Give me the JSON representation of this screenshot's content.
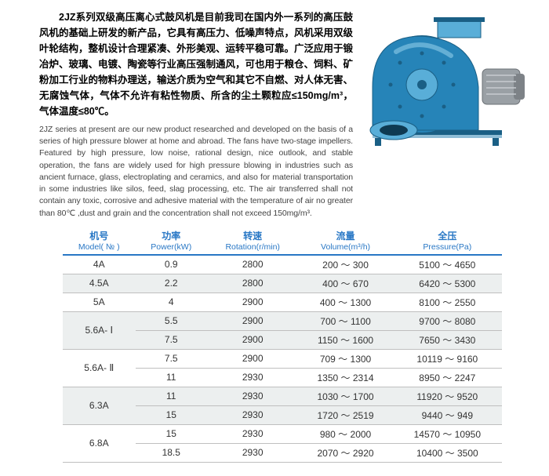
{
  "text": {
    "cn": "2JZ系列双级高压离心式鼓风机是目前我司在国内外一系列的高压鼓风机的基础上研发的新产品，它具有高压力、低噪声特点，风机采用双级叶轮结构，整机设计合理紧凑、外形美观、运转平稳可靠。广泛应用于锻冶炉、玻璃、电镀、陶瓷等行业高压强制通风，可也用于粮仓、饲料、矿粉加工行业的物料办理送，输送介质为空气和其它不自燃、对人体无害、无腐蚀气体，气体不允许有粘性物质、所含的尘土颗粒应≤150mg/m³，气体温度≤80℃。",
    "en": "2JZ series at present are our new product researched and developed on the basis of a series of high pressure blower at home and abroad. The fans have two-stage impellers. Featured by high pressure, low noise, rational design, nice outlook, and stable operation, the fans are widely used for high pressure blowing in industries such as ancient furnace, glass, electroplating and ceramics, and also for material transportation in some industries like silos, feed, slag processing, etc.  The air transferred shall not contain any toxic, corrosive and adhesive material with the temperature of air no greater than 80℃ ,dust and grain and the concentration shall not exceed 150mg/m³."
  },
  "table": {
    "headers": {
      "model_cn": "机号",
      "model_en": "Model( № )",
      "power_cn": "功率",
      "power_en": "Power(kW)",
      "rot_cn": "转速",
      "rot_en": "Rotation(r/min)",
      "vol_cn": "流量",
      "vol_en": "Volume(m³/h)",
      "press_cn": "全压",
      "press_en": "Pressure(Pa)"
    },
    "rows": [
      {
        "model": "4A",
        "rowspan": 1,
        "alt": false,
        "power": "0.9",
        "rot": "2800",
        "vol": "200 ～ 300",
        "press": "5100 ～ 4650"
      },
      {
        "model": "4.5A",
        "rowspan": 1,
        "alt": true,
        "power": "2.2",
        "rot": "2800",
        "vol": "400 ～ 670",
        "press": "6420 ～ 5300"
      },
      {
        "model": "5A",
        "rowspan": 1,
        "alt": false,
        "power": "4",
        "rot": "2900",
        "vol": "400 ～ 1300",
        "press": "8100 ～ 2550"
      },
      {
        "model": "5.6A- Ⅰ",
        "rowspan": 2,
        "alt": true,
        "power": "5.5",
        "rot": "2900",
        "vol": "700 ～ 1100",
        "press": "9700 ～ 8080"
      },
      {
        "model": null,
        "rowspan": 0,
        "alt": true,
        "power": "7.5",
        "rot": "2900",
        "vol": "1150 ～ 1600",
        "press": "7650 ～ 3430"
      },
      {
        "model": "5.6A- Ⅱ",
        "rowspan": 2,
        "alt": false,
        "power": "7.5",
        "rot": "2900",
        "vol": "709 ～ 1300",
        "press": "10119 ～ 9160"
      },
      {
        "model": null,
        "rowspan": 0,
        "alt": false,
        "power": "11",
        "rot": "2930",
        "vol": "1350 ～ 2314",
        "press": "8950 ～ 2247"
      },
      {
        "model": "6.3A",
        "rowspan": 2,
        "alt": true,
        "power": "11",
        "rot": "2930",
        "vol": "1030 ～ 1700",
        "press": "11920 ～ 9520"
      },
      {
        "model": null,
        "rowspan": 0,
        "alt": true,
        "power": "15",
        "rot": "2930",
        "vol": "1720 ～ 2519",
        "press": "9440 ～ 949"
      },
      {
        "model": "6.8A",
        "rowspan": 2,
        "alt": false,
        "power": "15",
        "rot": "2930",
        "vol": "980 ～ 2000",
        "press": "14570 ～ 10950"
      },
      {
        "model": null,
        "rowspan": 0,
        "alt": false,
        "power": "18.5",
        "rot": "2930",
        "vol": "2070 ～ 2920",
        "press": "10400 ～ 3500"
      }
    ]
  },
  "colors": {
    "header_blue": "#2877c5",
    "alt_row": "#ecefef",
    "border_gray": "#bfbfbf",
    "blower_body": "#2684b8",
    "blower_dark": "#1a5f85",
    "blower_light": "#59aed8",
    "motor_gray": "#9aa0a5"
  }
}
